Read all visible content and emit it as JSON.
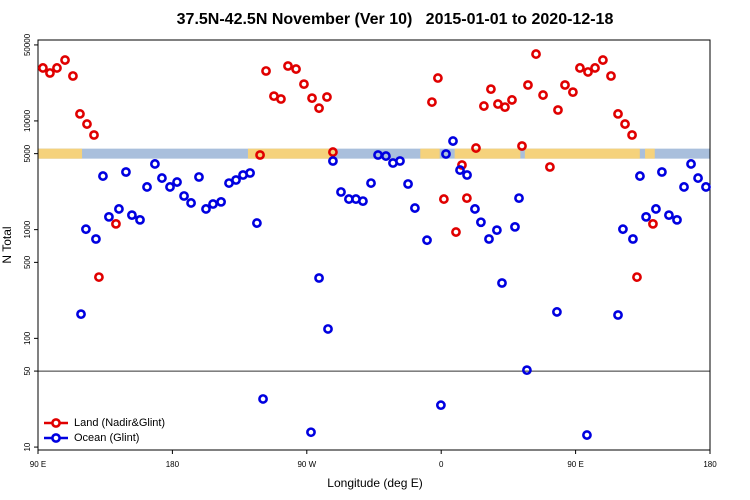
{
  "chart_data": {
    "type": "scatter",
    "title": "37.5N-42.5N November (Ver 10)   2015-01-01 to 2020-12-18",
    "x_label": "Longitude (deg E)",
    "y_label": "N Total",
    "log_y": true,
    "legend": "bottom-left",
    "xlim": [
      90,
      540
    ],
    "xticks": [
      {
        "value": 90,
        "label": "90 E"
      },
      {
        "value": 180,
        "label": "180"
      },
      {
        "value": 270,
        "label": "90 W"
      },
      {
        "value": 360,
        "label": "0"
      },
      {
        "value": 450,
        "label": "90 E"
      },
      {
        "value": 540,
        "label": "180"
      }
    ],
    "ylim": [
      9.4,
      55500
    ],
    "yticks": [
      10,
      50,
      100,
      500,
      1000,
      5000,
      10000,
      50000
    ],
    "reference_line": 50,
    "band": {
      "level": 5000,
      "color": "#a9bfdc",
      "segment_color": "#f5d27c",
      "segments": [
        [
          90,
          119.5
        ],
        [
          230.6,
          289
        ],
        [
          346,
          359
        ],
        [
          369,
          413
        ],
        [
          416,
          493
        ],
        [
          496.5,
          503
        ]
      ]
    },
    "series": [
      {
        "name": "Land (Nadir&Glint)",
        "color": "#e00000",
        "x": [
          93.3,
          98.0,
          102.7,
          108.1,
          113.4,
          118.1,
          122.8,
          127.5,
          130.8,
          142.2,
          238.7,
          242.7,
          248.0,
          252.7,
          257.4,
          262.8,
          268.1,
          273.5,
          278.2,
          283.5,
          287.5,
          353.8,
          357.8,
          361.8,
          369.9,
          373.9,
          377.2,
          383.3,
          388.6,
          393.3,
          398.0,
          402.7,
          407.4,
          414.1,
          418.1,
          423.5,
          428.2,
          432.8,
          438.2,
          442.9,
          448.2,
          452.9,
          458.3,
          463.0,
          468.3,
          473.7,
          478.4,
          483.1,
          487.8,
          491.1,
          501.8
        ],
        "values": [
          30700,
          27600,
          30700,
          36300,
          25900,
          11600,
          9360,
          7420,
          366,
          1130,
          4860,
          28800,
          16900,
          15900,
          32000,
          30000,
          21800,
          16200,
          13100,
          16600,
          5170,
          14900,
          24800,
          1910,
          950,
          3930,
          1950,
          5630,
          13700,
          19600,
          14300,
          13400,
          15600,
          5880,
          21400,
          41200,
          17300,
          3770,
          12600,
          21400,
          18400,
          30700,
          28200,
          30700,
          36300,
          25900,
          11600,
          9360,
          7420,
          366,
          1130
        ]
      },
      {
        "name": "Ocean (Glint)",
        "color": "#0000e0",
        "x": [
          118.8,
          122.1,
          128.8,
          133.5,
          137.5,
          144.2,
          148.9,
          152.9,
          158.3,
          163.0,
          168.3,
          173.0,
          178.4,
          183.1,
          187.8,
          192.5,
          197.8,
          202.5,
          207.2,
          212.6,
          217.9,
          222.6,
          227.3,
          232.0,
          236.6,
          240.7,
          272.8,
          278.2,
          284.2,
          287.5,
          292.9,
          298.2,
          302.9,
          307.6,
          313.0,
          317.7,
          323.0,
          327.7,
          332.4,
          337.8,
          342.4,
          350.5,
          359.8,
          363.2,
          367.9,
          372.6,
          377.3,
          382.6,
          386.6,
          392.0,
          397.3,
          400.7,
          409.4,
          412.1,
          417.4,
          437.5,
          457.6,
          478.4,
          481.7,
          488.4,
          493.1,
          497.2,
          503.8,
          507.8,
          512.5,
          517.9,
          522.6,
          527.3,
          532.0,
          537.3
        ],
        "values": [
          167,
          1010,
          820,
          3110,
          1310,
          1550,
          3390,
          1360,
          1230,
          2470,
          4020,
          2980,
          2470,
          2740,
          2040,
          1760,
          3050,
          1550,
          1720,
          1800,
          2680,
          2860,
          3180,
          3320,
          1150,
          27.7,
          13.7,
          359,
          122,
          4280,
          2220,
          1910,
          1910,
          1830,
          2680,
          4860,
          4750,
          4100,
          4280,
          2630,
          1580,
          800,
          24.3,
          4960,
          6530,
          3530,
          3180,
          1550,
          1170,
          820,
          990,
          323,
          1060,
          1950,
          51,
          175,
          12.9,
          164,
          1010,
          820,
          3110,
          1310,
          1550,
          3390,
          1360,
          1230,
          2470,
          4020,
          2980,
          2470
        ]
      }
    ]
  }
}
